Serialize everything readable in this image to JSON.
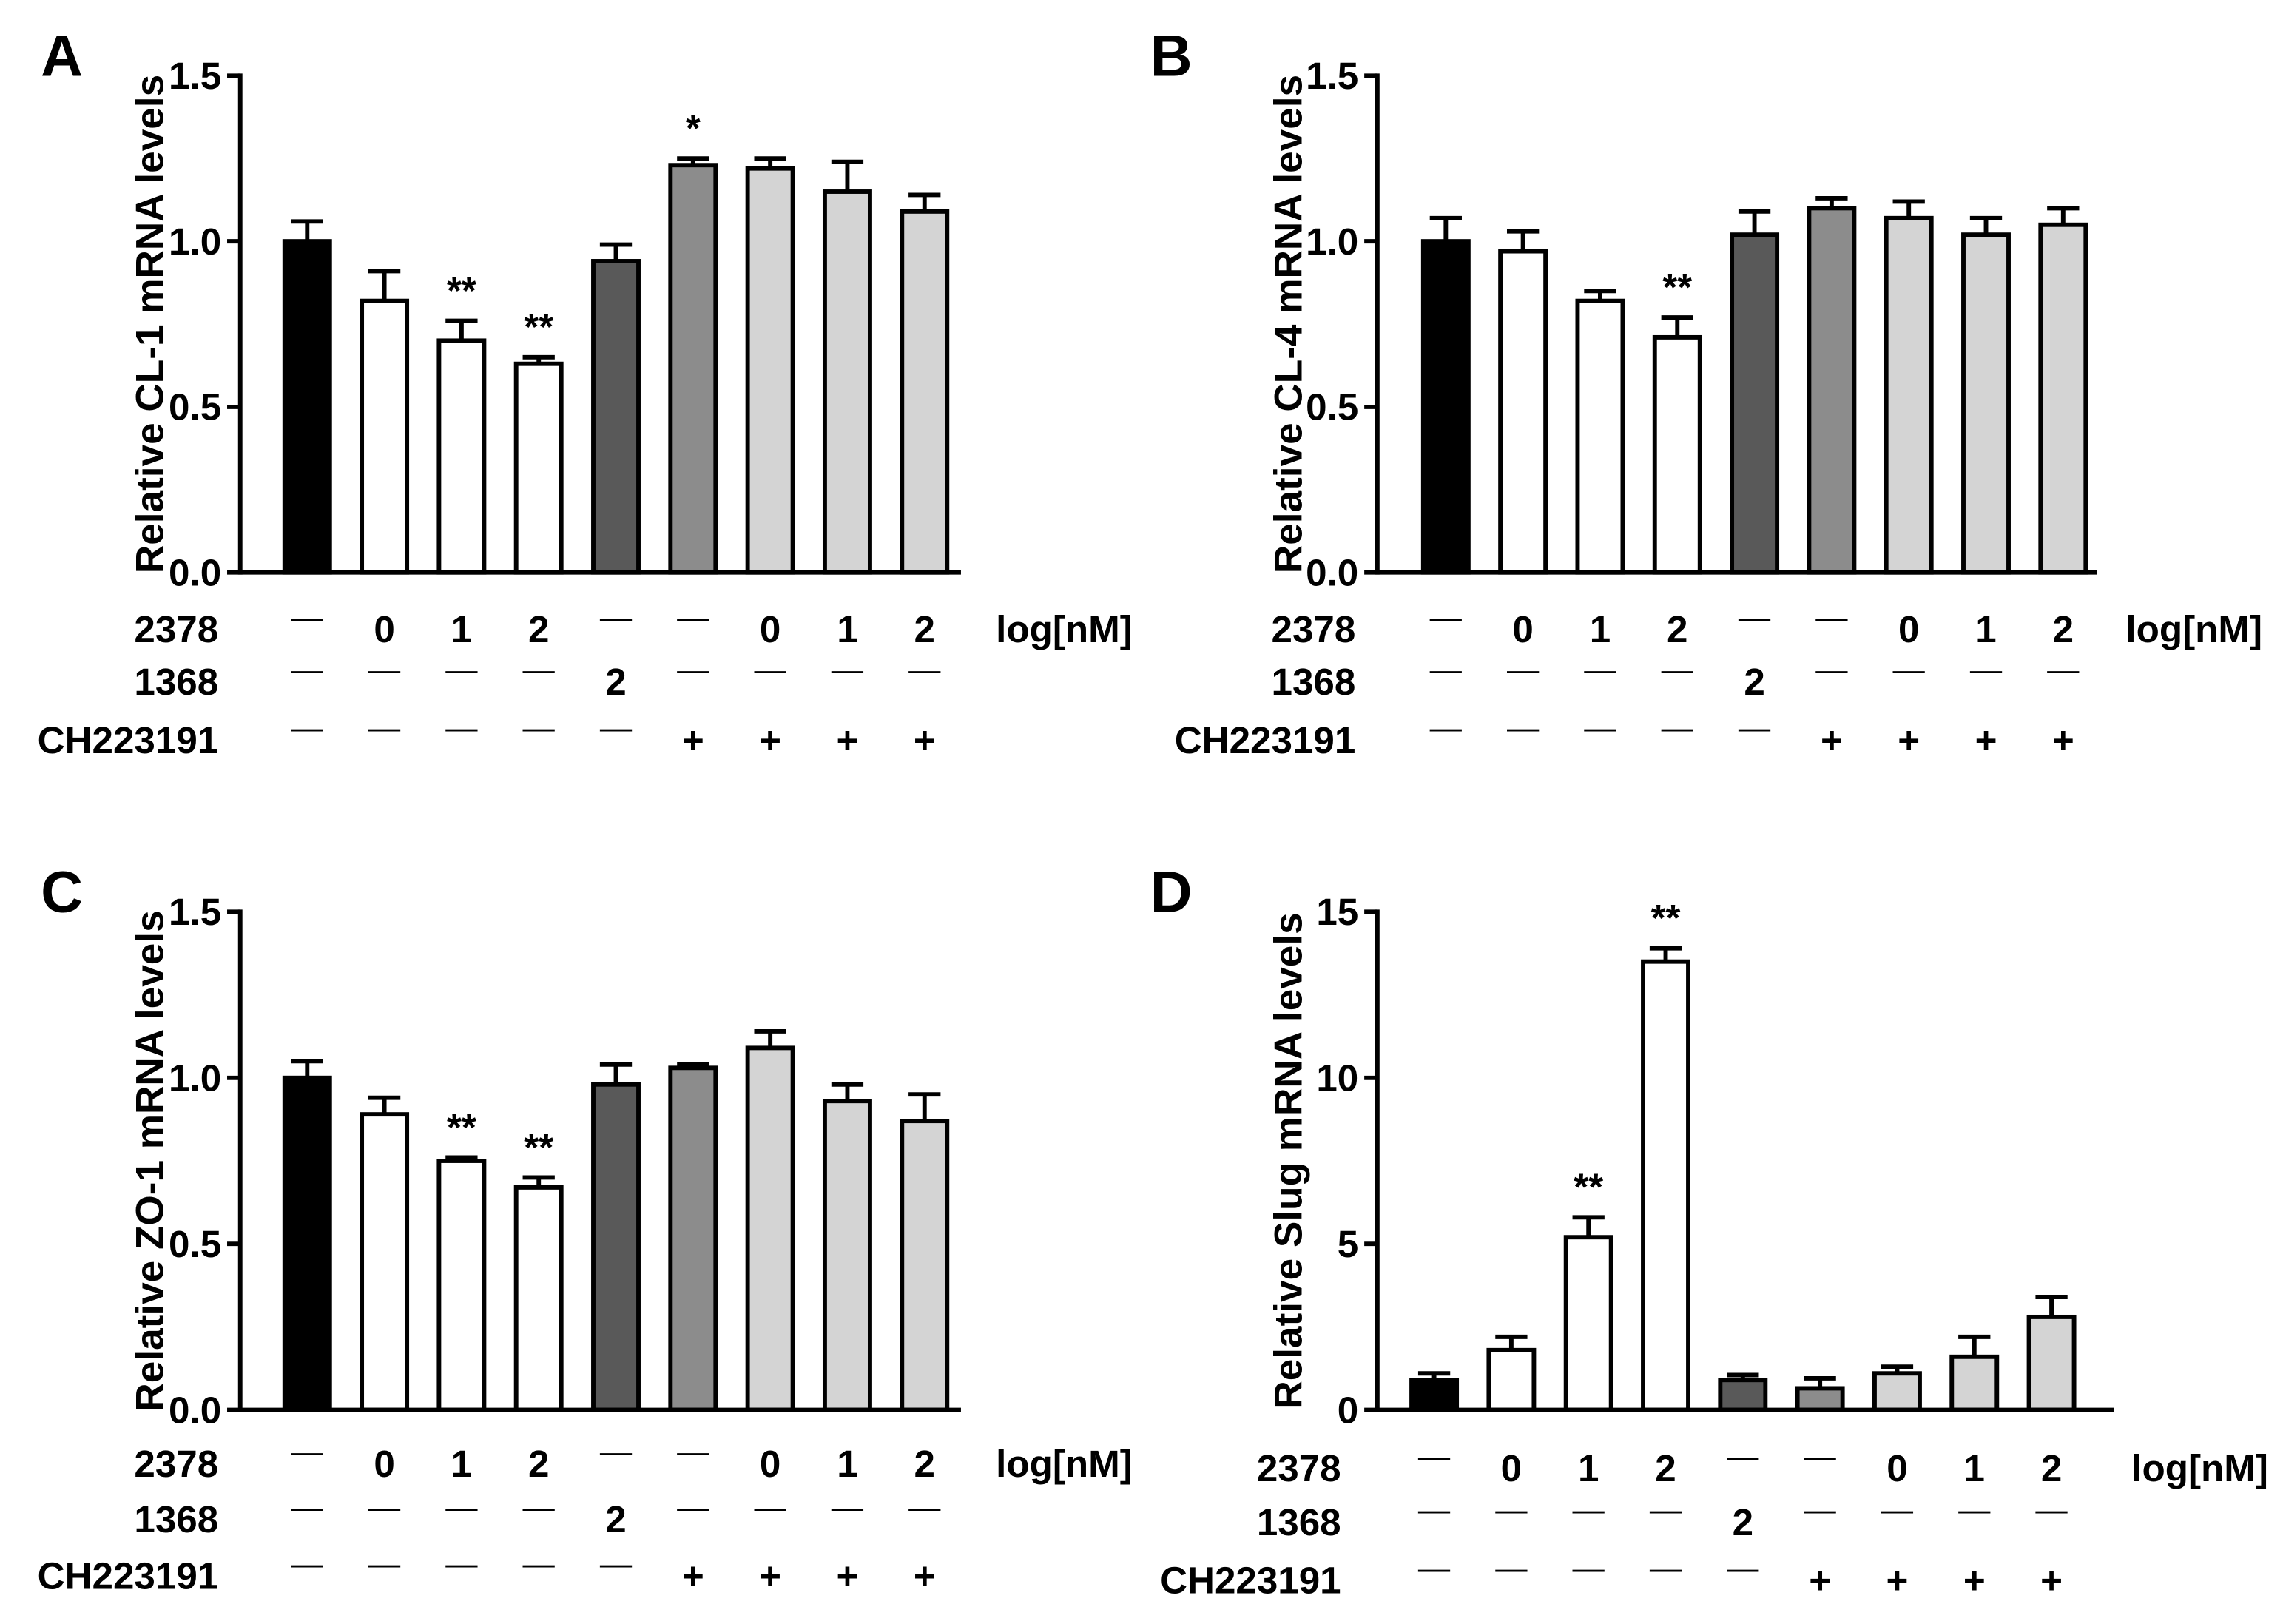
{
  "chart_data": [
    {
      "type": "bar",
      "panel_label": "A",
      "ylabel": "Relative CL-1 mRNA levels",
      "ylim": [
        0,
        1.5
      ],
      "yticks": [
        "0.0",
        "0.5",
        "1.0",
        "1.5"
      ],
      "grid": false,
      "values": [
        1.0,
        0.82,
        0.7,
        0.63,
        0.94,
        1.23,
        1.22,
        1.15,
        1.09
      ],
      "errors": [
        0.06,
        0.09,
        0.06,
        0.02,
        0.05,
        0.02,
        0.03,
        0.09,
        0.05
      ],
      "significance": [
        null,
        null,
        "**",
        "**",
        null,
        "*",
        null,
        null,
        null
      ],
      "bar_colors": [
        "#000000",
        "#ffffff",
        "#ffffff",
        "#ffffff",
        "#595959",
        "#8c8c8c",
        "#d4d4d4",
        "#d4d4d4",
        "#d4d4d4"
      ],
      "treatment_rows": [
        {
          "label": "2378",
          "values": [
            "—",
            "0",
            "1",
            "2",
            "—",
            "—",
            "0",
            "1",
            "2"
          ]
        },
        {
          "label": "1368",
          "values": [
            "—",
            "—",
            "—",
            "—",
            "2",
            "—",
            "—",
            "—",
            "—"
          ]
        },
        {
          "label": "CH223191",
          "values": [
            "—",
            "—",
            "—",
            "—",
            "—",
            "+",
            "+",
            "+",
            "+"
          ]
        }
      ],
      "unit_label": "log[nM]"
    },
    {
      "type": "bar",
      "panel_label": "B",
      "ylabel": "Relative CL-4 mRNA levels",
      "ylim": [
        0,
        1.5
      ],
      "yticks": [
        "0.0",
        "0.5",
        "1.0",
        "1.5"
      ],
      "grid": false,
      "values": [
        1.0,
        0.97,
        0.82,
        0.71,
        1.02,
        1.1,
        1.07,
        1.02,
        1.05
      ],
      "errors": [
        0.07,
        0.06,
        0.03,
        0.06,
        0.07,
        0.03,
        0.05,
        0.05,
        0.05
      ],
      "significance": [
        null,
        null,
        null,
        "**",
        null,
        null,
        null,
        null,
        null
      ],
      "bar_colors": [
        "#000000",
        "#ffffff",
        "#ffffff",
        "#ffffff",
        "#595959",
        "#8c8c8c",
        "#d4d4d4",
        "#d4d4d4",
        "#d4d4d4"
      ],
      "treatment_rows": [
        {
          "label": "2378",
          "values": [
            "—",
            "0",
            "1",
            "2",
            "—",
            "—",
            "0",
            "1",
            "2"
          ]
        },
        {
          "label": "1368",
          "values": [
            "—",
            "—",
            "—",
            "—",
            "2",
            "—",
            "—",
            "—",
            "—"
          ]
        },
        {
          "label": "CH223191",
          "values": [
            "—",
            "—",
            "—",
            "—",
            "—",
            "+",
            "+",
            "+",
            "+"
          ]
        }
      ],
      "unit_label": "log[nM]"
    },
    {
      "type": "bar",
      "panel_label": "C",
      "ylabel": "Relative ZO-1 mRNA levels",
      "ylim": [
        0,
        1.5
      ],
      "yticks": [
        "0.0",
        "0.5",
        "1.0",
        "1.5"
      ],
      "grid": false,
      "values": [
        1.0,
        0.89,
        0.75,
        0.67,
        0.98,
        1.03,
        1.09,
        0.93,
        0.87
      ],
      "errors": [
        0.05,
        0.05,
        0.01,
        0.03,
        0.06,
        0.01,
        0.05,
        0.05,
        0.08
      ],
      "significance": [
        null,
        null,
        "**",
        "**",
        null,
        null,
        null,
        null,
        null
      ],
      "bar_colors": [
        "#000000",
        "#ffffff",
        "#ffffff",
        "#ffffff",
        "#595959",
        "#8c8c8c",
        "#d4d4d4",
        "#d4d4d4",
        "#d4d4d4"
      ],
      "treatment_rows": [
        {
          "label": "2378",
          "values": [
            "—",
            "0",
            "1",
            "2",
            "—",
            "—",
            "0",
            "1",
            "2"
          ]
        },
        {
          "label": "1368",
          "values": [
            "—",
            "—",
            "—",
            "—",
            "2",
            "—",
            "—",
            "—",
            "—"
          ]
        },
        {
          "label": "CH223191",
          "values": [
            "—",
            "—",
            "—",
            "—",
            "—",
            "+",
            "+",
            "+",
            "+"
          ]
        }
      ],
      "unit_label": "log[nM]"
    },
    {
      "type": "bar",
      "panel_label": "D",
      "ylabel": "Relative Slug mRNA levels",
      "ylim": [
        0,
        15
      ],
      "yticks": [
        "0",
        "5",
        "10",
        "15"
      ],
      "grid": false,
      "values": [
        0.9,
        1.8,
        5.2,
        13.5,
        0.9,
        0.65,
        1.1,
        1.6,
        2.8
      ],
      "errors": [
        0.2,
        0.4,
        0.6,
        0.4,
        0.15,
        0.3,
        0.2,
        0.6,
        0.6
      ],
      "significance": [
        null,
        null,
        "**",
        "**",
        null,
        null,
        null,
        null,
        null
      ],
      "bar_colors": [
        "#000000",
        "#ffffff",
        "#ffffff",
        "#ffffff",
        "#595959",
        "#8c8c8c",
        "#d4d4d4",
        "#d4d4d4",
        "#d4d4d4"
      ],
      "treatment_rows": [
        {
          "label": "2378",
          "values": [
            "—",
            "0",
            "1",
            "2",
            "—",
            "—",
            "0",
            "1",
            "2"
          ]
        },
        {
          "label": "1368",
          "values": [
            "—",
            "—",
            "—",
            "—",
            "2",
            "—",
            "—",
            "—",
            "—"
          ]
        },
        {
          "label": "CH223191",
          "values": [
            "—",
            "—",
            "—",
            "—",
            "—",
            "+",
            "+",
            "+",
            "+"
          ]
        }
      ],
      "unit_label": "log[nM]"
    }
  ]
}
